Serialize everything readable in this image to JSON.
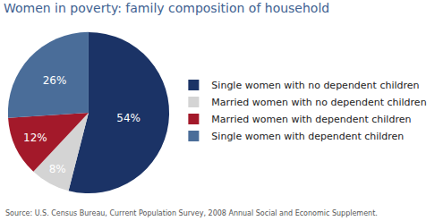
{
  "chart_data": {
    "type": "pie",
    "title": "Women in poverty: family composition of household",
    "categories": [
      "Single women with no dependent children",
      "Married women with no dependent children",
      "Married women with dependent children",
      "Single women with dependent children"
    ],
    "values": [
      54,
      8,
      12,
      26
    ],
    "value_labels": [
      "54%",
      "8%",
      "12%",
      "26%"
    ],
    "colors": [
      "#1b3366",
      "#d4d4d4",
      "#a3192a",
      "#4a6d99"
    ],
    "data_labels": true,
    "legend": "right",
    "source": "Source: U.S. Census Bureau, Current Population Survey, 2008 Annual Social and Economic Supplement."
  }
}
